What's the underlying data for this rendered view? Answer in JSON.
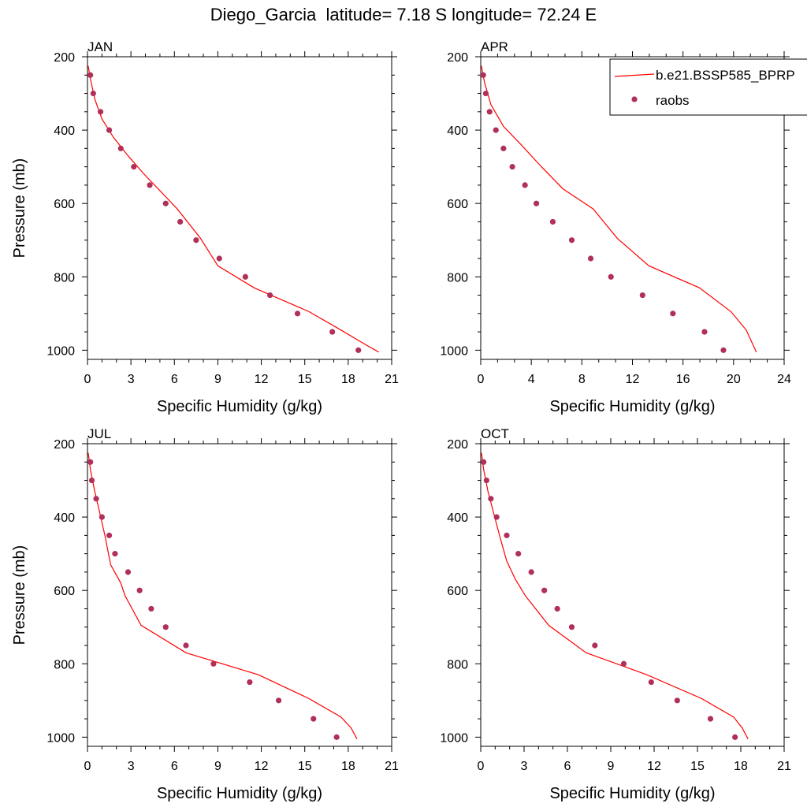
{
  "title": "Diego_Garcia  latitude= 7.18 S longitude= 72.24 E",
  "colors": {
    "model_line": "#ff0000",
    "obs_marker": "#b0305a",
    "axis": "#000000"
  },
  "legend": {
    "entries": [
      {
        "label": "b.e21.BSSP585_BPRP",
        "kind": "line"
      },
      {
        "label": "raobs",
        "kind": "marker"
      }
    ],
    "placement": "top-right of APR panel, clipped at figure edge"
  },
  "chart_data": [
    {
      "type": "line",
      "panel": "JAN",
      "title": "JAN",
      "xlabel": "Specific Humidity (g/kg)",
      "ylabel": "Pressure (mb)",
      "xlim": [
        0,
        21
      ],
      "ylim": [
        200,
        1025
      ],
      "y_inverted": true,
      "xticks": [
        0,
        3,
        6,
        9,
        12,
        15,
        18,
        21
      ],
      "yticks": [
        200,
        400,
        600,
        800,
        1000
      ],
      "series": [
        {
          "name": "b.e21.BSSP585_BPRP",
          "kind": "line",
          "x": [
            0.05,
            0.2,
            0.5,
            1.0,
            1.8,
            2.8,
            3.9,
            5.0,
            6.2,
            7.8,
            9.0,
            11.5,
            15.3,
            17.5,
            19.2,
            20.1
          ],
          "y": [
            225,
            260,
            315,
            370,
            420,
            470,
            520,
            565,
            615,
            695,
            770,
            830,
            895,
            945,
            985,
            1005
          ]
        },
        {
          "name": "raobs",
          "kind": "marker",
          "x": [
            0.2,
            0.4,
            0.9,
            1.5,
            2.3,
            3.2,
            4.3,
            5.4,
            6.4,
            7.5,
            9.1,
            10.9,
            12.6,
            14.5,
            16.9,
            18.7
          ],
          "y": [
            250,
            300,
            350,
            400,
            450,
            500,
            550,
            600,
            650,
            700,
            750,
            800,
            850,
            900,
            950,
            1000
          ]
        }
      ]
    },
    {
      "type": "line",
      "panel": "APR",
      "title": "APR",
      "xlabel": "Specific Humidity (g/kg)",
      "ylabel": "",
      "xlim": [
        0,
        24
      ],
      "ylim": [
        200,
        1025
      ],
      "y_inverted": true,
      "xticks": [
        0,
        4,
        8,
        12,
        16,
        20,
        24
      ],
      "yticks": [
        200,
        400,
        600,
        800,
        1000
      ],
      "series": [
        {
          "name": "b.e21.BSSP585_BPRP",
          "kind": "line",
          "x": [
            0.05,
            0.3,
            0.8,
            1.8,
            3.2,
            4.8,
            6.5,
            8.9,
            10.8,
            13.3,
            17.3,
            19.8,
            21.0,
            21.8
          ],
          "y": [
            225,
            270,
            330,
            390,
            440,
            500,
            560,
            615,
            695,
            770,
            830,
            895,
            945,
            1005
          ]
        },
        {
          "name": "raobs",
          "kind": "marker",
          "x": [
            0.2,
            0.4,
            0.7,
            1.2,
            1.8,
            2.5,
            3.5,
            4.4,
            5.7,
            7.2,
            8.7,
            10.3,
            12.8,
            15.2,
            17.7,
            19.2
          ],
          "y": [
            250,
            300,
            350,
            400,
            450,
            500,
            550,
            600,
            650,
            700,
            750,
            800,
            850,
            900,
            950,
            1000
          ]
        }
      ]
    },
    {
      "type": "line",
      "panel": "JUL",
      "title": "JUL",
      "xlabel": "Specific Humidity (g/kg)",
      "ylabel": "Pressure (mb)",
      "xlim": [
        0,
        21
      ],
      "ylim": [
        200,
        1025
      ],
      "y_inverted": true,
      "xticks": [
        0,
        3,
        6,
        9,
        12,
        15,
        18,
        21
      ],
      "yticks": [
        200,
        400,
        600,
        800,
        1000
      ],
      "series": [
        {
          "name": "b.e21.BSSP585_BPRP",
          "kind": "line",
          "x": [
            0.05,
            0.2,
            0.5,
            0.8,
            1.2,
            1.6,
            2.3,
            2.6,
            3.7,
            6.8,
            11.8,
            15.3,
            17.5,
            18.2,
            18.6
          ],
          "y": [
            225,
            270,
            330,
            380,
            450,
            530,
            580,
            615,
            695,
            770,
            830,
            895,
            945,
            975,
            1005
          ]
        },
        {
          "name": "raobs",
          "kind": "marker",
          "x": [
            0.2,
            0.3,
            0.6,
            1.0,
            1.5,
            1.9,
            2.8,
            3.6,
            4.4,
            5.4,
            6.8,
            8.7,
            11.2,
            13.2,
            15.6,
            17.2
          ],
          "y": [
            250,
            300,
            350,
            400,
            450,
            500,
            550,
            600,
            650,
            700,
            750,
            800,
            850,
            900,
            950,
            1000
          ]
        }
      ]
    },
    {
      "type": "line",
      "panel": "OCT",
      "title": "OCT",
      "xlabel": "Specific Humidity (g/kg)",
      "ylabel": "",
      "xlim": [
        0,
        21
      ],
      "ylim": [
        200,
        1025
      ],
      "y_inverted": true,
      "xticks": [
        0,
        3,
        6,
        9,
        12,
        15,
        18,
        21
      ],
      "yticks": [
        200,
        400,
        600,
        800,
        1000
      ],
      "series": [
        {
          "name": "b.e21.BSSP585_BPRP",
          "kind": "line",
          "x": [
            0.05,
            0.2,
            0.5,
            0.9,
            1.3,
            1.8,
            2.4,
            3.1,
            4.7,
            7.3,
            11.5,
            15.3,
            17.5,
            18.1,
            18.5
          ],
          "y": [
            225,
            270,
            330,
            390,
            450,
            520,
            570,
            615,
            695,
            770,
            830,
            895,
            945,
            975,
            1005
          ]
        },
        {
          "name": "raobs",
          "kind": "marker",
          "x": [
            0.2,
            0.4,
            0.7,
            1.1,
            1.8,
            2.6,
            3.5,
            4.4,
            5.3,
            6.3,
            7.9,
            9.9,
            11.8,
            13.6,
            15.9,
            17.6
          ],
          "y": [
            250,
            300,
            350,
            400,
            450,
            500,
            550,
            600,
            650,
            700,
            750,
            800,
            850,
            900,
            950,
            1000
          ]
        }
      ]
    }
  ]
}
